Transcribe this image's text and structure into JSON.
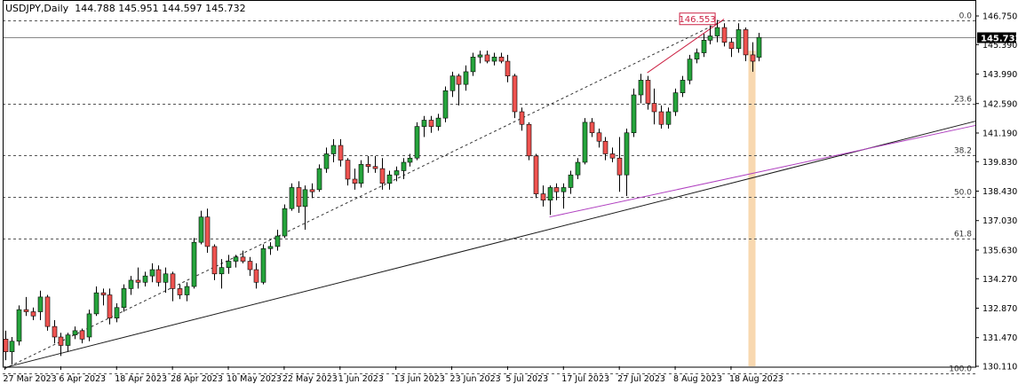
{
  "header": {
    "symbol": "USDJPY,Daily",
    "ohlc": "144.788 145.951 144.597 145.732"
  },
  "price_tag": "145.732",
  "high_tag": "146.553",
  "colors": {
    "bull": "#26a43c",
    "bear": "#ef5350",
    "grid": "#555555",
    "trend": "#1a1a1a",
    "channel": "#b040c0",
    "fib_ray": "#cc2244",
    "highlight": "#f8d8b0"
  },
  "chart_data": {
    "type": "candlestick",
    "title": "USDJPY,Daily",
    "y_ticks": [
      "146.750",
      "145.390",
      "143.990",
      "142.590",
      "141.190",
      "139.830",
      "138.430",
      "137.030",
      "135.630",
      "134.270",
      "132.870",
      "131.470",
      "130.110"
    ],
    "ylim": [
      130.11,
      146.75
    ],
    "x_tick_labels": [
      "27 Mar 2023",
      "6 Apr 2023",
      "18 Apr 2023",
      "28 Apr 2023",
      "10 May 2023",
      "22 May 2023",
      "1 Jun 2023",
      "13 Jun 2023",
      "23 Jun 2023",
      "5 Jul 2023",
      "17 Jul 2023",
      "27 Jul 2023",
      "8 Aug 2023",
      "18 Aug 2023"
    ],
    "fib_levels": [
      {
        "label": "0.0",
        "price": 146.55
      },
      {
        "label": "23.6",
        "price": 142.59
      },
      {
        "label": "38.2",
        "price": 140.13
      },
      {
        "label": "50.0",
        "price": 138.15
      },
      {
        "label": "61.8",
        "price": 136.16
      },
      {
        "label": "100.0",
        "price": 129.78
      }
    ],
    "last_close": 145.732,
    "high_marker": 146.553,
    "candles": [
      {
        "o": 131.4,
        "h": 131.8,
        "l": 130.4,
        "c": 130.8
      },
      {
        "o": 130.8,
        "h": 131.5,
        "l": 130.2,
        "c": 131.3
      },
      {
        "o": 131.3,
        "h": 133.0,
        "l": 131.1,
        "c": 132.8
      },
      {
        "o": 132.8,
        "h": 133.4,
        "l": 132.5,
        "c": 132.7
      },
      {
        "o": 132.7,
        "h": 132.9,
        "l": 132.3,
        "c": 132.5
      },
      {
        "o": 132.7,
        "h": 133.7,
        "l": 132.3,
        "c": 133.4
      },
      {
        "o": 133.4,
        "h": 133.5,
        "l": 131.8,
        "c": 132.0
      },
      {
        "o": 132.0,
        "h": 132.3,
        "l": 131.2,
        "c": 131.5
      },
      {
        "o": 131.5,
        "h": 131.7,
        "l": 130.6,
        "c": 131.1
      },
      {
        "o": 131.1,
        "h": 131.7,
        "l": 130.8,
        "c": 131.6
      },
      {
        "o": 131.6,
        "h": 132.0,
        "l": 131.4,
        "c": 131.8
      },
      {
        "o": 131.8,
        "h": 131.9,
        "l": 131.2,
        "c": 131.4
      },
      {
        "o": 131.5,
        "h": 132.8,
        "l": 131.3,
        "c": 132.6
      },
      {
        "o": 132.6,
        "h": 133.9,
        "l": 132.5,
        "c": 133.6
      },
      {
        "o": 133.6,
        "h": 133.8,
        "l": 133.0,
        "c": 133.5
      },
      {
        "o": 133.5,
        "h": 133.8,
        "l": 132.1,
        "c": 132.4
      },
      {
        "o": 132.4,
        "h": 133.1,
        "l": 132.2,
        "c": 132.9
      },
      {
        "o": 132.9,
        "h": 134.0,
        "l": 132.7,
        "c": 133.8
      },
      {
        "o": 133.8,
        "h": 134.4,
        "l": 133.5,
        "c": 134.2
      },
      {
        "o": 134.2,
        "h": 134.8,
        "l": 133.8,
        "c": 134.1
      },
      {
        "o": 134.1,
        "h": 134.6,
        "l": 133.9,
        "c": 134.4
      },
      {
        "o": 134.4,
        "h": 135.0,
        "l": 134.1,
        "c": 134.7
      },
      {
        "o": 134.7,
        "h": 134.9,
        "l": 133.9,
        "c": 134.1
      },
      {
        "o": 134.1,
        "h": 134.8,
        "l": 133.6,
        "c": 134.5
      },
      {
        "o": 134.5,
        "h": 134.6,
        "l": 133.2,
        "c": 133.8
      },
      {
        "o": 133.8,
        "h": 134.0,
        "l": 133.3,
        "c": 133.5
      },
      {
        "o": 133.5,
        "h": 134.1,
        "l": 133.2,
        "c": 133.9
      },
      {
        "o": 133.9,
        "h": 136.2,
        "l": 133.8,
        "c": 136.0
      },
      {
        "o": 136.0,
        "h": 137.5,
        "l": 135.9,
        "c": 137.2
      },
      {
        "o": 137.2,
        "h": 137.6,
        "l": 135.5,
        "c": 135.8
      },
      {
        "o": 135.8,
        "h": 135.9,
        "l": 134.2,
        "c": 134.5
      },
      {
        "o": 134.5,
        "h": 135.2,
        "l": 133.8,
        "c": 134.8
      },
      {
        "o": 134.8,
        "h": 135.4,
        "l": 134.5,
        "c": 135.1
      },
      {
        "o": 135.1,
        "h": 135.4,
        "l": 134.8,
        "c": 135.3
      },
      {
        "o": 135.3,
        "h": 135.6,
        "l": 135.0,
        "c": 135.1
      },
      {
        "o": 135.1,
        "h": 135.3,
        "l": 134.4,
        "c": 134.7
      },
      {
        "o": 134.7,
        "h": 135.0,
        "l": 133.8,
        "c": 134.1
      },
      {
        "o": 134.1,
        "h": 135.9,
        "l": 134.0,
        "c": 135.7
      },
      {
        "o": 135.7,
        "h": 136.0,
        "l": 135.4,
        "c": 135.8
      },
      {
        "o": 135.8,
        "h": 136.6,
        "l": 135.6,
        "c": 136.3
      },
      {
        "o": 136.3,
        "h": 137.8,
        "l": 136.2,
        "c": 137.6
      },
      {
        "o": 137.6,
        "h": 138.8,
        "l": 137.5,
        "c": 138.6
      },
      {
        "o": 138.6,
        "h": 138.9,
        "l": 137.4,
        "c": 137.7
      },
      {
        "o": 137.7,
        "h": 138.7,
        "l": 136.6,
        "c": 138.5
      },
      {
        "o": 138.5,
        "h": 138.8,
        "l": 138.1,
        "c": 138.4
      },
      {
        "o": 138.5,
        "h": 139.7,
        "l": 138.4,
        "c": 139.5
      },
      {
        "o": 139.5,
        "h": 140.5,
        "l": 139.3,
        "c": 140.2
      },
      {
        "o": 140.2,
        "h": 140.9,
        "l": 139.8,
        "c": 140.6
      },
      {
        "o": 140.6,
        "h": 140.9,
        "l": 139.6,
        "c": 139.9
      },
      {
        "o": 139.9,
        "h": 140.0,
        "l": 138.7,
        "c": 139.0
      },
      {
        "o": 139.0,
        "h": 139.5,
        "l": 138.5,
        "c": 138.8
      },
      {
        "o": 138.8,
        "h": 139.9,
        "l": 138.6,
        "c": 139.7
      },
      {
        "o": 139.7,
        "h": 140.1,
        "l": 139.3,
        "c": 139.6
      },
      {
        "o": 139.6,
        "h": 140.1,
        "l": 139.3,
        "c": 139.5
      },
      {
        "o": 139.5,
        "h": 140.0,
        "l": 138.5,
        "c": 138.8
      },
      {
        "o": 138.8,
        "h": 139.4,
        "l": 138.5,
        "c": 139.2
      },
      {
        "o": 139.2,
        "h": 139.6,
        "l": 138.9,
        "c": 139.4
      },
      {
        "o": 139.4,
        "h": 140.0,
        "l": 139.0,
        "c": 139.8
      },
      {
        "o": 139.8,
        "h": 140.2,
        "l": 139.6,
        "c": 140.0
      },
      {
        "o": 140.0,
        "h": 141.7,
        "l": 139.9,
        "c": 141.5
      },
      {
        "o": 141.5,
        "h": 142.0,
        "l": 141.0,
        "c": 141.8
      },
      {
        "o": 141.8,
        "h": 142.0,
        "l": 141.2,
        "c": 141.5
      },
      {
        "o": 141.5,
        "h": 142.1,
        "l": 141.3,
        "c": 141.9
      },
      {
        "o": 141.9,
        "h": 143.4,
        "l": 141.7,
        "c": 143.2
      },
      {
        "o": 143.2,
        "h": 144.1,
        "l": 142.9,
        "c": 143.9
      },
      {
        "o": 143.9,
        "h": 144.0,
        "l": 142.5,
        "c": 143.5
      },
      {
        "o": 143.5,
        "h": 144.4,
        "l": 143.2,
        "c": 144.1
      },
      {
        "o": 144.1,
        "h": 145.0,
        "l": 143.9,
        "c": 144.8
      },
      {
        "o": 144.8,
        "h": 145.1,
        "l": 144.5,
        "c": 144.9
      },
      {
        "o": 144.9,
        "h": 145.1,
        "l": 144.5,
        "c": 144.6
      },
      {
        "o": 144.6,
        "h": 145.0,
        "l": 144.4,
        "c": 144.8
      },
      {
        "o": 144.8,
        "h": 145.0,
        "l": 144.5,
        "c": 144.6
      },
      {
        "o": 144.6,
        "h": 144.9,
        "l": 143.6,
        "c": 143.9
      },
      {
        "o": 143.9,
        "h": 144.0,
        "l": 141.9,
        "c": 142.2
      },
      {
        "o": 142.2,
        "h": 142.4,
        "l": 141.3,
        "c": 141.6
      },
      {
        "o": 141.6,
        "h": 141.7,
        "l": 139.9,
        "c": 140.1
      },
      {
        "o": 140.1,
        "h": 140.2,
        "l": 138.1,
        "c": 138.3
      },
      {
        "o": 138.3,
        "h": 138.7,
        "l": 137.7,
        "c": 138.0
      },
      {
        "o": 138.0,
        "h": 138.7,
        "l": 137.3,
        "c": 138.6
      },
      {
        "o": 138.6,
        "h": 138.8,
        "l": 138.0,
        "c": 138.4
      },
      {
        "o": 138.4,
        "h": 138.8,
        "l": 137.6,
        "c": 138.6
      },
      {
        "o": 138.6,
        "h": 139.4,
        "l": 138.3,
        "c": 139.2
      },
      {
        "o": 139.2,
        "h": 140.0,
        "l": 139.0,
        "c": 139.8
      },
      {
        "o": 139.8,
        "h": 141.9,
        "l": 139.7,
        "c": 141.7
      },
      {
        "o": 141.7,
        "h": 141.9,
        "l": 141.0,
        "c": 141.2
      },
      {
        "o": 141.2,
        "h": 141.4,
        "l": 140.5,
        "c": 140.8
      },
      {
        "o": 140.8,
        "h": 141.0,
        "l": 139.9,
        "c": 140.2
      },
      {
        "o": 140.2,
        "h": 140.5,
        "l": 139.8,
        "c": 140.0
      },
      {
        "o": 140.0,
        "h": 141.0,
        "l": 138.4,
        "c": 139.2
      },
      {
        "o": 139.2,
        "h": 141.4,
        "l": 138.2,
        "c": 141.2
      },
      {
        "o": 141.2,
        "h": 143.3,
        "l": 141.0,
        "c": 143.0
      },
      {
        "o": 143.0,
        "h": 144.0,
        "l": 142.6,
        "c": 143.7
      },
      {
        "o": 143.7,
        "h": 143.9,
        "l": 142.3,
        "c": 142.6
      },
      {
        "o": 142.6,
        "h": 143.3,
        "l": 141.6,
        "c": 142.2
      },
      {
        "o": 142.2,
        "h": 142.5,
        "l": 141.4,
        "c": 141.6
      },
      {
        "o": 141.6,
        "h": 142.4,
        "l": 141.4,
        "c": 142.2
      },
      {
        "o": 142.2,
        "h": 143.3,
        "l": 142.0,
        "c": 143.1
      },
      {
        "o": 143.1,
        "h": 143.9,
        "l": 142.9,
        "c": 143.7
      },
      {
        "o": 143.7,
        "h": 144.9,
        "l": 143.5,
        "c": 144.7
      },
      {
        "o": 144.7,
        "h": 145.2,
        "l": 144.5,
        "c": 145.0
      },
      {
        "o": 145.0,
        "h": 145.9,
        "l": 144.8,
        "c": 145.6
      },
      {
        "o": 145.6,
        "h": 146.3,
        "l": 145.4,
        "c": 145.8
      },
      {
        "o": 145.8,
        "h": 146.56,
        "l": 145.5,
        "c": 146.2
      },
      {
        "o": 146.2,
        "h": 146.4,
        "l": 145.3,
        "c": 145.5
      },
      {
        "o": 145.5,
        "h": 145.7,
        "l": 144.8,
        "c": 145.2
      },
      {
        "o": 145.2,
        "h": 146.4,
        "l": 145.0,
        "c": 146.1
      },
      {
        "o": 146.1,
        "h": 146.2,
        "l": 144.6,
        "c": 144.9
      },
      {
        "o": 144.9,
        "h": 145.5,
        "l": 144.1,
        "c": 144.6
      },
      {
        "o": 144.788,
        "h": 145.951,
        "l": 144.597,
        "c": 145.732
      }
    ]
  }
}
